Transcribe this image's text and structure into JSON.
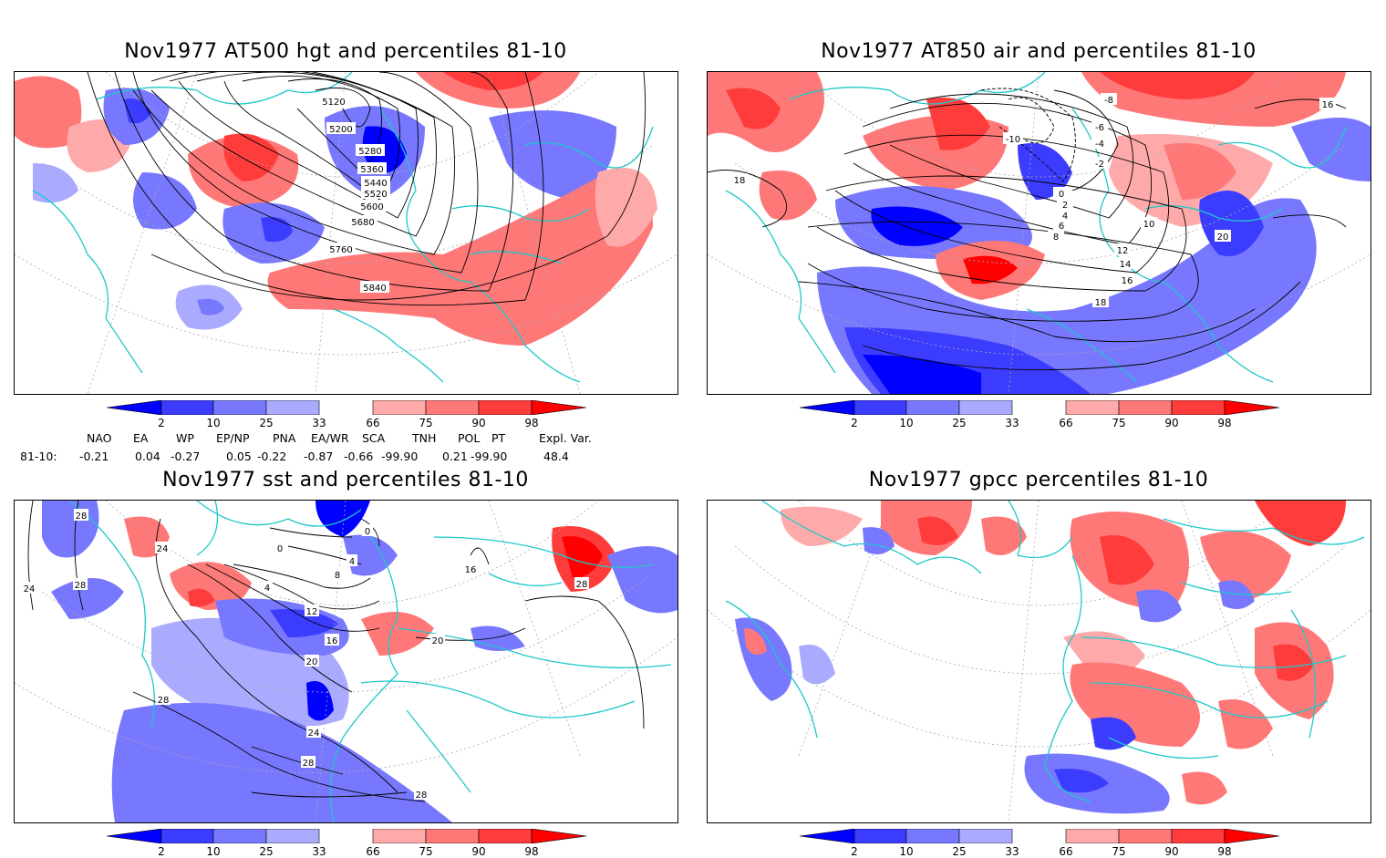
{
  "panels": [
    {
      "id": "hgt500",
      "title": "Nov1977 AT500 hgt and percentiles 81-10",
      "contour_labels": [
        "5120",
        "5200",
        "5280",
        "5360",
        "5440",
        "5520",
        "5600",
        "5680",
        "5760",
        "5840"
      ]
    },
    {
      "id": "air850",
      "title": "Nov1977 AT850 air and percentiles 81-10",
      "contour_labels": [
        "-8",
        "-6",
        "-4",
        "-2",
        "0",
        "2",
        "4",
        "6",
        "8",
        "10",
        "12",
        "14",
        "16",
        "18",
        "20",
        "-10",
        "16",
        "18"
      ]
    },
    {
      "id": "sst",
      "title": "Nov1977 sst and percentiles 81-10",
      "contour_labels": [
        "28",
        "24",
        "24",
        "28",
        "0",
        "0",
        "4",
        "4",
        "8",
        "12",
        "16",
        "20",
        "20",
        "28",
        "24",
        "28",
        "28",
        "16",
        "28"
      ]
    },
    {
      "id": "gpcc",
      "title": "Nov1977 gpcc percentiles 81-10",
      "contour_labels": []
    }
  ],
  "colorbar": {
    "ticks": [
      "2",
      "10",
      "25",
      "33",
      "66",
      "75",
      "90",
      "98"
    ],
    "colors": {
      "blue_dark": "#0000ff",
      "blue_mid": "#3c3cff",
      "blue_light": "#7878ff",
      "blue_pale": "#aaaaff",
      "red_pale": "#ffaaaa",
      "red_light": "#ff7878",
      "red_mid": "#ff3c3c",
      "red_dark": "#ff0000"
    }
  },
  "indices": {
    "headers": [
      "NAO",
      "EA",
      "WP",
      "EP/NP",
      "PNA",
      "EA/WR",
      "SCA",
      "TNH",
      "POL",
      "PT",
      "Expl. Var."
    ],
    "row_label": "81-10:",
    "values": [
      "-0.21",
      "0.04",
      "-0.27",
      "0.05",
      "-0.22",
      "-0.87",
      "-0.66",
      "-99.90",
      "0.21",
      "-99.90",
      "48.4"
    ]
  },
  "colors": {
    "coastline": "#1ec8c8",
    "contour": "#000000",
    "grid": "#aaaaaa"
  }
}
